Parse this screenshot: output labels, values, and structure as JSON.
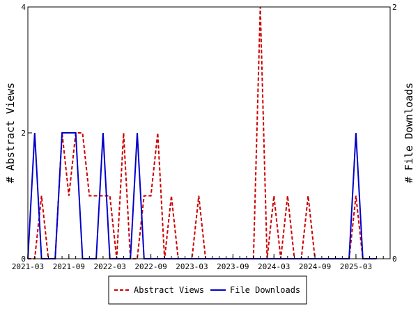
{
  "chart_data": {
    "type": "line",
    "y_left_label": "# Abstract Views",
    "y_right_label": "# File Downloads",
    "y_left_range": [
      0,
      4
    ],
    "y_left_ticks": [
      0,
      2,
      4
    ],
    "y_right_range": [
      0,
      2
    ],
    "y_right_ticks": [
      0,
      2
    ],
    "x_range": [
      "2021-03",
      "2025-08"
    ],
    "x_ticks": [
      "2021-03",
      "2021-09",
      "2022-03",
      "2022-09",
      "2023-03",
      "2023-09",
      "2024-03",
      "2024-09",
      "2025-03"
    ],
    "grid": false,
    "legend_position": "bottom",
    "series": [
      {
        "name": "Abstract Views",
        "axis": "left",
        "color": "#cc0000",
        "style": "dashed",
        "points": [
          [
            "2021-03",
            0
          ],
          [
            "2021-04",
            0
          ],
          [
            "2021-05",
            1
          ],
          [
            "2021-06",
            0
          ],
          [
            "2021-07",
            0
          ],
          [
            "2021-08",
            2
          ],
          [
            "2021-09",
            1
          ],
          [
            "2021-10",
            2
          ],
          [
            "2021-11",
            2
          ],
          [
            "2021-12",
            1
          ],
          [
            "2022-01",
            1
          ],
          [
            "2022-02",
            1
          ],
          [
            "2022-03",
            1
          ],
          [
            "2022-04",
            0
          ],
          [
            "2022-05",
            2
          ],
          [
            "2022-06",
            0
          ],
          [
            "2022-07",
            0
          ],
          [
            "2022-08",
            1
          ],
          [
            "2022-09",
            1
          ],
          [
            "2022-10",
            2
          ],
          [
            "2022-11",
            0
          ],
          [
            "2022-12",
            1
          ],
          [
            "2023-01",
            0
          ],
          [
            "2023-02",
            0
          ],
          [
            "2023-03",
            0
          ],
          [
            "2023-04",
            1
          ],
          [
            "2023-05",
            0
          ],
          [
            "2023-06",
            0
          ],
          [
            "2023-07",
            0
          ],
          [
            "2023-08",
            0
          ],
          [
            "2023-09",
            0
          ],
          [
            "2023-10",
            0
          ],
          [
            "2023-11",
            0
          ],
          [
            "2023-12",
            0
          ],
          [
            "2024-01",
            4
          ],
          [
            "2024-02",
            0
          ],
          [
            "2024-03",
            1
          ],
          [
            "2024-04",
            0
          ],
          [
            "2024-05",
            1
          ],
          [
            "2024-06",
            0
          ],
          [
            "2024-07",
            0
          ],
          [
            "2024-08",
            1
          ],
          [
            "2024-09",
            0
          ],
          [
            "2024-10",
            0
          ],
          [
            "2024-11",
            0
          ],
          [
            "2024-12",
            0
          ],
          [
            "2025-01",
            0
          ],
          [
            "2025-02",
            0
          ],
          [
            "2025-03",
            1
          ],
          [
            "2025-04",
            0
          ],
          [
            "2025-05",
            0
          ],
          [
            "2025-06",
            0
          ]
        ]
      },
      {
        "name": "File Downloads",
        "axis": "right",
        "color": "#0000cc",
        "style": "solid",
        "points": [
          [
            "2021-03",
            0
          ],
          [
            "2021-04",
            1
          ],
          [
            "2021-05",
            0
          ],
          [
            "2021-06",
            0
          ],
          [
            "2021-07",
            0
          ],
          [
            "2021-08",
            1
          ],
          [
            "2021-09",
            1
          ],
          [
            "2021-10",
            1
          ],
          [
            "2021-11",
            0
          ],
          [
            "2021-12",
            0
          ],
          [
            "2022-01",
            0
          ],
          [
            "2022-02",
            1
          ],
          [
            "2022-03",
            0
          ],
          [
            "2022-04",
            0
          ],
          [
            "2022-05",
            0
          ],
          [
            "2022-06",
            0
          ],
          [
            "2022-07",
            1
          ],
          [
            "2022-08",
            0
          ],
          [
            "2022-09",
            0
          ],
          [
            "2022-10",
            0
          ],
          [
            "2022-11",
            0
          ],
          [
            "2022-12",
            0
          ],
          [
            "2023-01",
            0
          ],
          [
            "2023-02",
            0
          ],
          [
            "2023-03",
            0
          ],
          [
            "2023-04",
            0
          ],
          [
            "2023-05",
            0
          ],
          [
            "2023-06",
            0
          ],
          [
            "2023-07",
            0
          ],
          [
            "2023-08",
            0
          ],
          [
            "2023-09",
            0
          ],
          [
            "2023-10",
            0
          ],
          [
            "2023-11",
            0
          ],
          [
            "2023-12",
            0
          ],
          [
            "2024-01",
            0
          ],
          [
            "2024-02",
            0
          ],
          [
            "2024-03",
            0
          ],
          [
            "2024-04",
            0
          ],
          [
            "2024-05",
            0
          ],
          [
            "2024-06",
            0
          ],
          [
            "2024-07",
            0
          ],
          [
            "2024-08",
            0
          ],
          [
            "2024-09",
            0
          ],
          [
            "2024-10",
            0
          ],
          [
            "2024-11",
            0
          ],
          [
            "2024-12",
            0
          ],
          [
            "2025-01",
            0
          ],
          [
            "2025-02",
            0
          ],
          [
            "2025-03",
            1
          ],
          [
            "2025-04",
            0
          ],
          [
            "2025-05",
            0
          ],
          [
            "2025-06",
            0
          ]
        ]
      }
    ]
  }
}
